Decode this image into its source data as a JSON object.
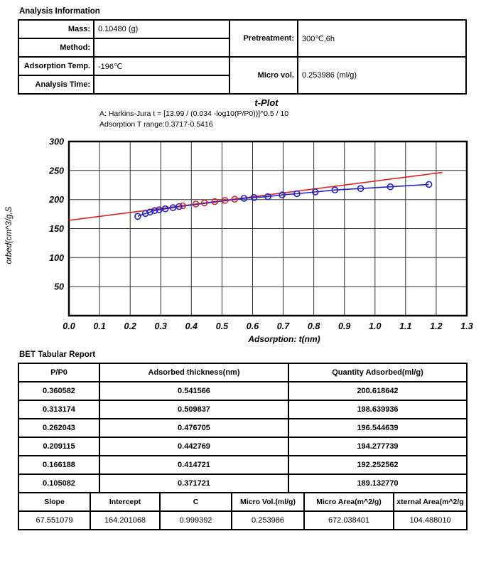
{
  "analysis_info": {
    "title": "Analysis Information",
    "fields": {
      "mass_label": "Mass:",
      "mass_value": "0.10480 (g)",
      "method_label": "Method:",
      "method_value": "",
      "adsorption_temp_label": "Adsorption Temp.",
      "adsorption_temp_value": "-196℃",
      "analysis_time_label": "Analysis Time:",
      "analysis_time_value": "",
      "pretreatment_label": "Pretreatment:",
      "pretreatment_value": "300℃,6h",
      "micro_vol_label": "Micro vol.",
      "micro_vol_value": "0.253986 (ml/g)"
    }
  },
  "chart": {
    "title": "t-Plot",
    "subtitle_formula": "A: Harkins-Jura t = [13.99 / (0.034 -log10(P/P0))]^0.5 / 10",
    "subtitle_range": "Adsorption T range:0.3717-0.5416",
    "xlabel": "Adsorption: t(nm)",
    "ylabel": "orbed(cm^3/g,S"
  },
  "chart_data": {
    "type": "scatter",
    "title": "t-Plot",
    "xlabel": "Adsorption: t(nm)",
    "ylabel": "orbed(cm^3/g,S",
    "xlim": [
      0.0,
      1.3
    ],
    "xtick_step": 0.1,
    "ylim": [
      0,
      300
    ],
    "ytick_step": 50,
    "grid": true,
    "legend": "none",
    "series": [
      {
        "name": "adsorption-data-series",
        "color": "#2222cc",
        "marker": "circle",
        "line": true,
        "points": [
          [
            0.225,
            171
          ],
          [
            0.25,
            176
          ],
          [
            0.265,
            178.5
          ],
          [
            0.28,
            181
          ],
          [
            0.295,
            182.5
          ],
          [
            0.315,
            184
          ],
          [
            0.34,
            186
          ],
          [
            0.36,
            188
          ],
          [
            0.572,
            202
          ],
          [
            0.605,
            203.5
          ],
          [
            0.65,
            205
          ],
          [
            0.697,
            208
          ],
          [
            0.745,
            210
          ],
          [
            0.805,
            213
          ],
          [
            0.869,
            216.5
          ],
          [
            0.953,
            219
          ],
          [
            1.05,
            222
          ],
          [
            1.176,
            226
          ]
        ]
      },
      {
        "name": "fit-range-points-series",
        "color": "#dd2222",
        "marker": "circle",
        "line": false,
        "points": [
          [
            0.371721,
            189.13277
          ],
          [
            0.414721,
            192.252562
          ],
          [
            0.442769,
            194.277739
          ],
          [
            0.476705,
            196.544639
          ],
          [
            0.509837,
            198.639936
          ],
          [
            0.541566,
            200.618642
          ]
        ]
      }
    ],
    "fit_line": {
      "color": "#dd2222",
      "slope": 67.551079,
      "intercept": 164.201068,
      "x_start": 0.0,
      "x_end": 1.22
    }
  },
  "bet_report": {
    "title": "BET Tabular Report",
    "columns": [
      "P/P0",
      "Adsorbed thickness(nm)",
      "Quantity Adsorbed(ml/g)"
    ],
    "rows": [
      [
        "0.360582",
        "0.541566",
        "200.618642"
      ],
      [
        "0.313174",
        "0.509837",
        "198.639936"
      ],
      [
        "0.262043",
        "0.476705",
        "196.544639"
      ],
      [
        "0.209115",
        "0.442769",
        "194.277739"
      ],
      [
        "0.166188",
        "0.414721",
        "192.252562"
      ],
      [
        "0.105082",
        "0.371721",
        "189.132770"
      ]
    ]
  },
  "summary_table": {
    "columns": [
      "Slope",
      "Intercept",
      "C",
      "Micro Vol.(ml/g)",
      "Micro Area(m^2/g)",
      "xternal Area(m^2/g"
    ],
    "rows": [
      [
        "67.551079",
        "164.201068",
        "0.999392",
        "0.253986",
        "672.038401",
        "104.488010"
      ]
    ]
  }
}
